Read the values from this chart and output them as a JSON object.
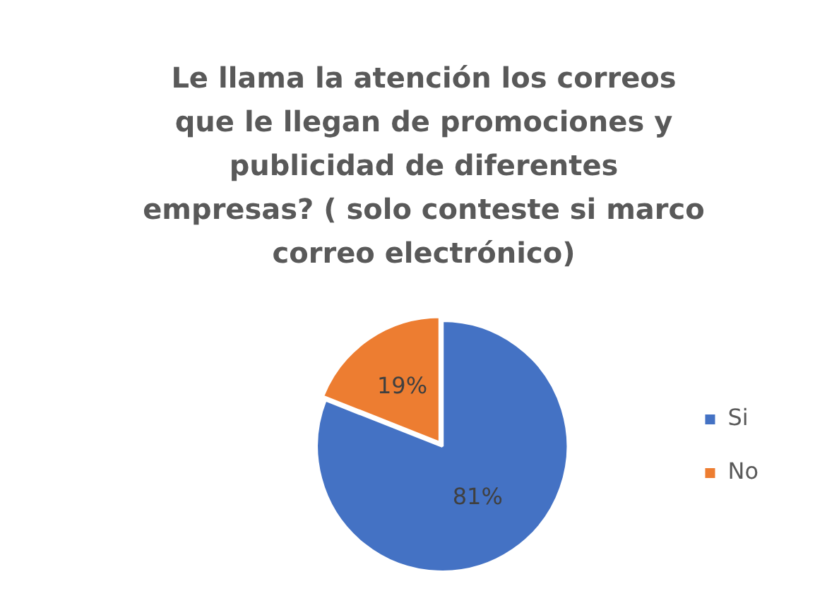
{
  "chart_data": {
    "type": "pie",
    "title": "Le llama la atención los correos que le llegan de promociones y publicidad de diferentes empresas? ( solo conteste si marco correo electrónico)",
    "categories": [
      "Si",
      "No"
    ],
    "values": [
      81,
      19
    ],
    "colors": [
      "#4472c4",
      "#ed7d31"
    ],
    "value_labels": [
      "81%",
      "19%"
    ],
    "legend": "right"
  }
}
